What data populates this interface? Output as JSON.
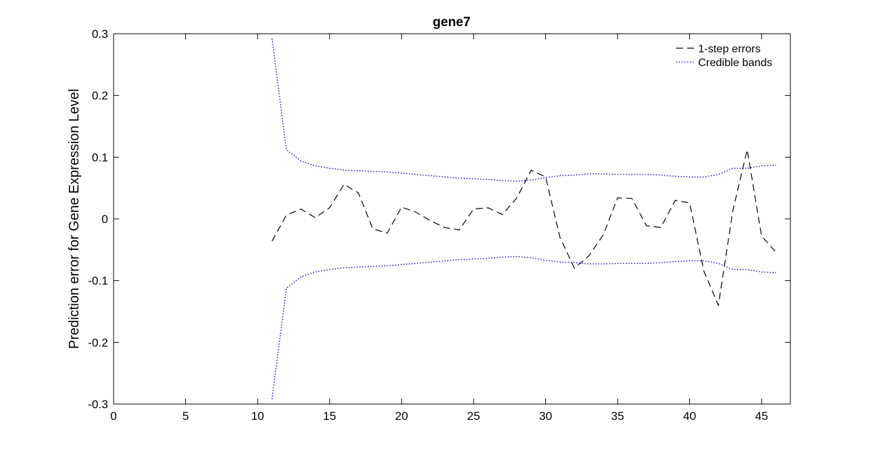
{
  "chart_data": {
    "type": "line",
    "title": "gene7",
    "xlabel": "",
    "ylabel": "Prediction error for Gene Expression Level",
    "xlim": [
      0,
      47
    ],
    "ylim": [
      -0.3,
      0.3
    ],
    "xticks": [
      0,
      5,
      10,
      15,
      20,
      25,
      30,
      35,
      40,
      45
    ],
    "yticks": [
      -0.3,
      -0.2,
      -0.1,
      0,
      0.1,
      0.2,
      0.3
    ],
    "ytick_labels": [
      "-0.3",
      "-0.2",
      "-0.1",
      "0",
      "0.1",
      "0.2",
      "0.3"
    ],
    "grid": false,
    "legend_position": "top-right",
    "colors": {
      "errors": "#000000",
      "bands": "#0000ff"
    },
    "x": [
      11,
      12,
      13,
      14,
      15,
      16,
      17,
      18,
      19,
      20,
      21,
      22,
      23,
      24,
      25,
      26,
      27,
      28,
      29,
      30,
      31,
      32,
      33,
      34,
      35,
      36,
      37,
      38,
      39,
      40,
      41,
      42,
      43,
      44,
      45,
      46
    ],
    "series": [
      {
        "name": "1-step errors",
        "style": "dashed",
        "values": [
          -0.036,
          0.006,
          0.016,
          0.002,
          0.018,
          0.056,
          0.042,
          -0.016,
          -0.023,
          0.019,
          0.011,
          -0.003,
          -0.014,
          -0.018,
          0.016,
          0.018,
          0.007,
          0.034,
          0.079,
          0.068,
          -0.03,
          -0.08,
          -0.06,
          -0.026,
          0.034,
          0.033,
          -0.011,
          -0.014,
          0.03,
          0.026,
          -0.085,
          -0.14,
          0.013,
          0.112,
          -0.028,
          -0.054
        ]
      },
      {
        "name": "Credible bands",
        "style": "dotted",
        "values": [
          0.292,
          0.112,
          0.094,
          0.086,
          0.082,
          0.079,
          0.078,
          0.077,
          0.076,
          0.074,
          0.072,
          0.07,
          0.068,
          0.066,
          0.065,
          0.064,
          0.062,
          0.061,
          0.063,
          0.067,
          0.07,
          0.071,
          0.073,
          0.073,
          0.072,
          0.072,
          0.072,
          0.071,
          0.069,
          0.068,
          0.068,
          0.072,
          0.082,
          0.082,
          0.086,
          0.087
        ]
      },
      {
        "name": "",
        "style": "dotted",
        "legend": false,
        "values": [
          -0.292,
          -0.112,
          -0.094,
          -0.086,
          -0.082,
          -0.079,
          -0.078,
          -0.077,
          -0.076,
          -0.074,
          -0.072,
          -0.07,
          -0.068,
          -0.066,
          -0.065,
          -0.064,
          -0.062,
          -0.061,
          -0.063,
          -0.067,
          -0.07,
          -0.071,
          -0.073,
          -0.073,
          -0.072,
          -0.072,
          -0.072,
          -0.071,
          -0.069,
          -0.068,
          -0.068,
          -0.072,
          -0.082,
          -0.082,
          -0.086,
          -0.087
        ]
      }
    ]
  }
}
